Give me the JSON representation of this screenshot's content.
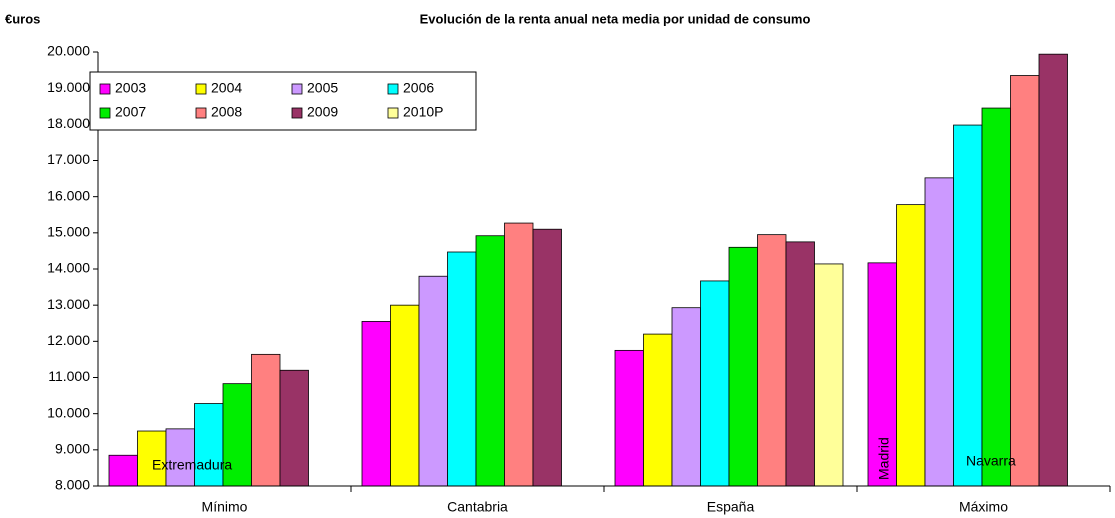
{
  "chart_data": {
    "type": "bar",
    "title": "Evolución de la renta anual neta media por unidad de consumo",
    "y_label": "€uros",
    "categories": [
      "Mínimo",
      "Cantabria",
      "España",
      "Máximo"
    ],
    "series": [
      {
        "name": "2003",
        "color": "#ff00ff",
        "values": [
          8850,
          12550,
          11750,
          14170
        ]
      },
      {
        "name": "2004",
        "color": "#ffff00",
        "values": [
          9520,
          13000,
          12200,
          15780
        ]
      },
      {
        "name": "2005",
        "color": "#cc99ff",
        "values": [
          9580,
          13800,
          12930,
          16520
        ]
      },
      {
        "name": "2006",
        "color": "#00ffff",
        "values": [
          10280,
          14470,
          13670,
          17980
        ]
      },
      {
        "name": "2007",
        "color": "#00ee00",
        "values": [
          10830,
          14920,
          14600,
          18450
        ]
      },
      {
        "name": "2008",
        "color": "#ff8080",
        "values": [
          11640,
          15270,
          14950,
          19350
        ]
      },
      {
        "name": "2009",
        "color": "#993366",
        "values": [
          11200,
          15100,
          14750,
          19940
        ]
      },
      {
        "name": "2010P",
        "color": "#ffff99",
        "values": [
          null,
          null,
          14140,
          null
        ]
      }
    ],
    "annotations": [
      "Extremadura",
      "Madrid",
      "Navarra"
    ],
    "ylim": [
      8000,
      20000
    ],
    "yticks": [
      {
        "value": 8000,
        "label": "8.000"
      },
      {
        "value": 9000,
        "label": "9.000"
      },
      {
        "value": 10000,
        "label": "10.000"
      },
      {
        "value": 11000,
        "label": "11.000"
      },
      {
        "value": 12000,
        "label": "12.000"
      },
      {
        "value": 13000,
        "label": "13.000"
      },
      {
        "value": 14000,
        "label": "14.000"
      },
      {
        "value": 15000,
        "label": "15.000"
      },
      {
        "value": 16000,
        "label": "16.000"
      },
      {
        "value": 17000,
        "label": "17.000"
      },
      {
        "value": 18000,
        "label": "18.000"
      },
      {
        "value": 19000,
        "label": "19.000"
      },
      {
        "value": 20000,
        "label": "20.000"
      }
    ],
    "grid": false
  }
}
